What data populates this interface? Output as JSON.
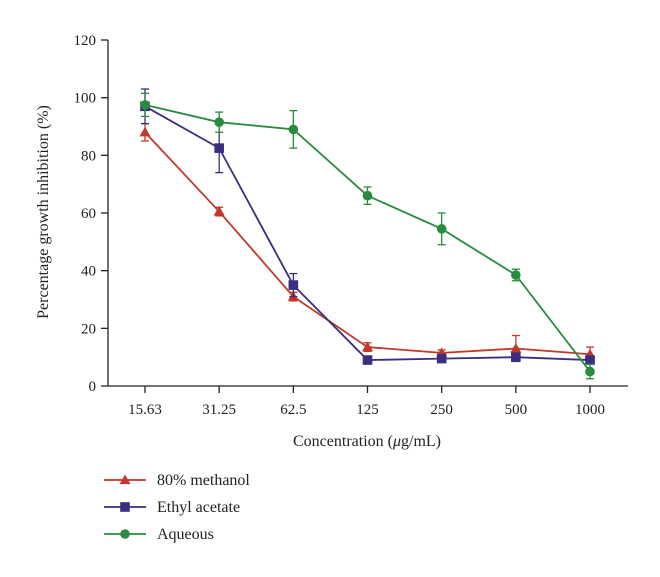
{
  "chart_data": {
    "type": "line",
    "categories": [
      "15.63",
      "31.25",
      "62.5",
      "125",
      "250",
      "500",
      "1000"
    ],
    "ylabel": "Percentage growth inhibition (%)",
    "xlabel_prefix": "Concentration (",
    "xlabel_mu": "μ",
    "xlabel_suffix": "g/mL)",
    "ylim": [
      0,
      120
    ],
    "yticks": [
      "0",
      "20",
      "40",
      "60",
      "80",
      "100",
      "120"
    ],
    "series": [
      {
        "name": "80% methanol",
        "color": "#c0392b",
        "marker": "triangle",
        "values": [
          88,
          60.5,
          31,
          13.5,
          11.5,
          13,
          11
        ],
        "errors": [
          3,
          1.5,
          1.5,
          1.5,
          1,
          4.5,
          2.5
        ]
      },
      {
        "name": "Ethyl acetate",
        "color": "#3b2d7f",
        "marker": "square",
        "values": [
          97,
          82.5,
          35,
          9,
          9.5,
          10,
          9
        ],
        "errors": [
          6,
          8.5,
          4,
          1,
          1,
          1,
          1
        ]
      },
      {
        "name": "Aqueous",
        "color": "#2a8a3e",
        "marker": "circle",
        "values": [
          97.5,
          91.5,
          89,
          66,
          54.5,
          38.5,
          5
        ],
        "errors": [
          4,
          3.5,
          6.5,
          3,
          5.5,
          2,
          2.5
        ]
      }
    ],
    "legend_position": "below"
  }
}
